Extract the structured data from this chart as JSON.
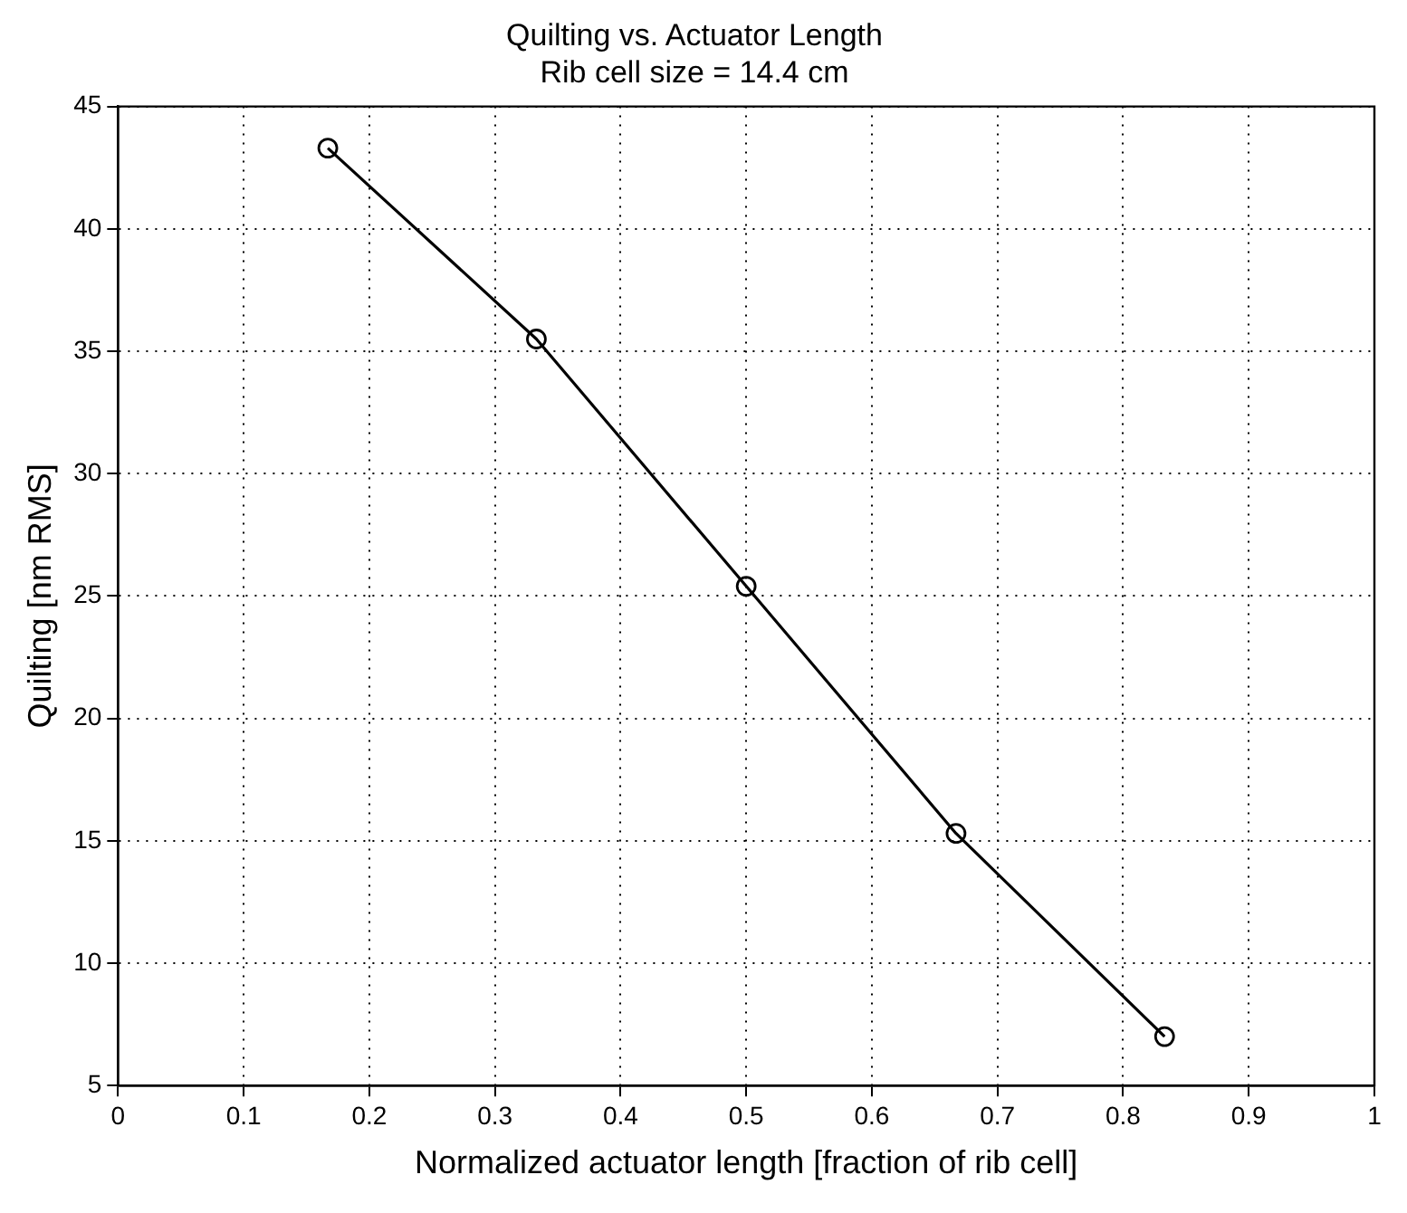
{
  "chart_data": {
    "type": "line",
    "title": "Quilting vs. Actuator Length",
    "subtitle": "Rib cell size = 14.4 cm",
    "xlabel": "Normalized actuator length [fraction of rib cell]",
    "ylabel": "Quilting [nm RMS]",
    "x": [
      0.167,
      0.333,
      0.5,
      0.667,
      0.833
    ],
    "series": [
      {
        "color": "#000000",
        "values": [
          43.3,
          35.5,
          25.4,
          15.3,
          7.0
        ]
      }
    ],
    "xlim": [
      0,
      1
    ],
    "xticks": [
      0,
      0.1,
      0.2,
      0.3,
      0.4,
      0.5,
      0.6,
      0.7,
      0.8,
      0.9,
      1
    ],
    "ylim": [
      5,
      45
    ],
    "yticks": [
      5,
      10,
      15,
      20,
      25,
      30,
      35,
      40,
      45
    ],
    "grid": true,
    "legend": false,
    "marker": "circle",
    "line_style": "solid"
  }
}
